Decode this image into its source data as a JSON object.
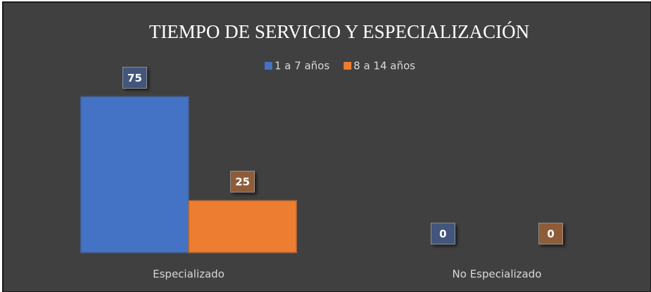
{
  "chart_data": {
    "type": "bar",
    "title": "TIEMPO DE SERVICIO Y ESPECIALIZACIÓN",
    "categories": [
      "Especializado",
      "No Especializado"
    ],
    "series": [
      {
        "name": "1 a 7 años",
        "color": "#4472c4",
        "values": [
          75,
          0
        ]
      },
      {
        "name": "8 a 14 años",
        "color": "#ed7d31",
        "values": [
          25,
          0
        ]
      }
    ],
    "ylim": [
      0,
      90
    ],
    "legend": "top"
  }
}
